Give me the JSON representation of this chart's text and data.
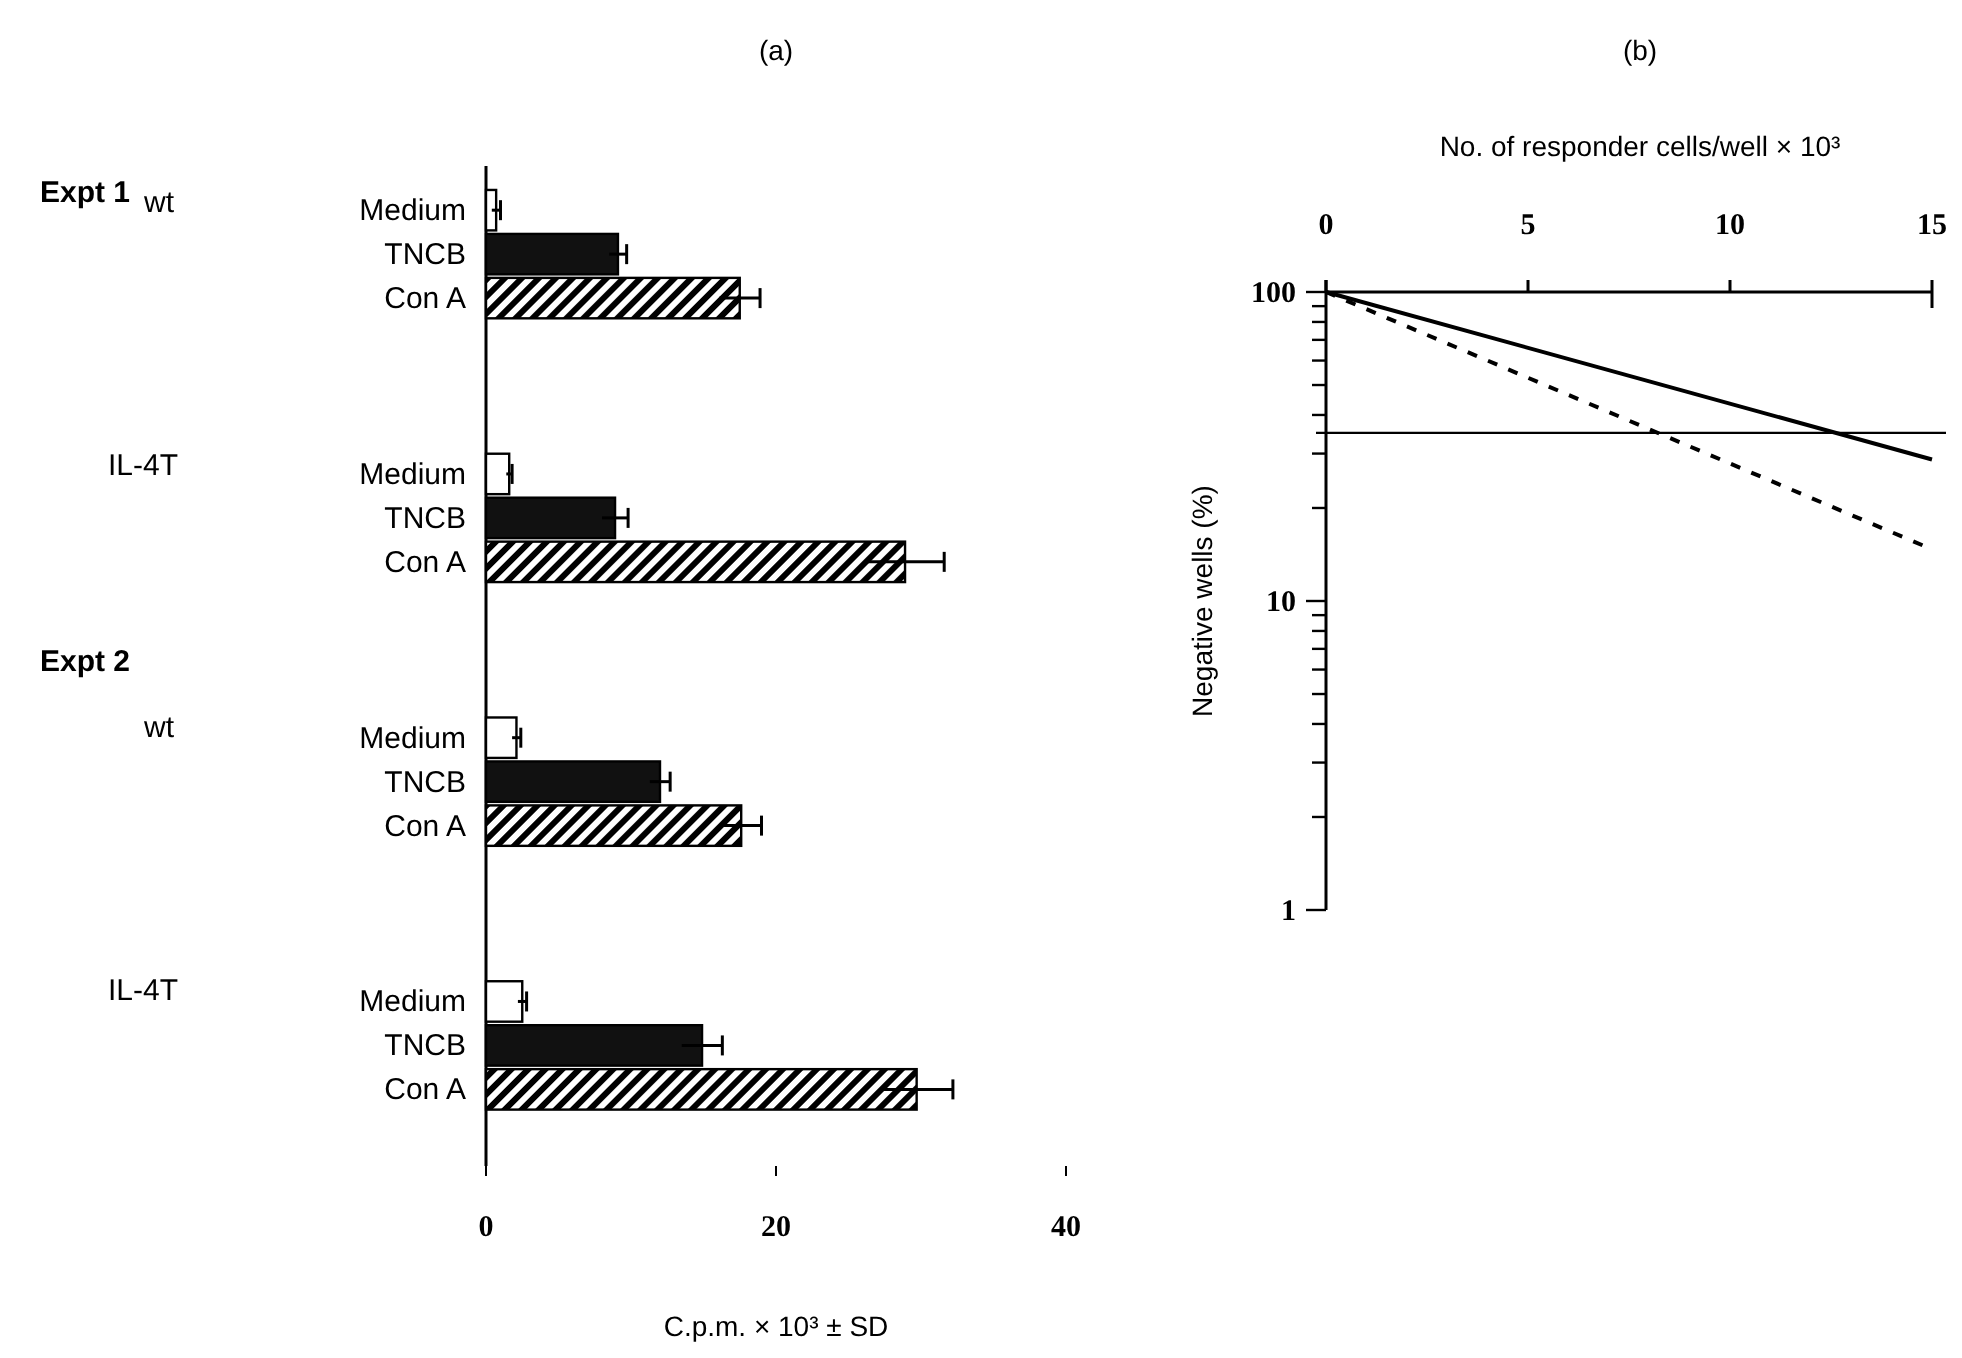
{
  "chart_data": [
    {
      "type": "bar",
      "orientation": "horizontal",
      "title": "(a)",
      "xlabel": "C.p.m. × 10³ ± SD",
      "categories": [
        null,
        "Medium",
        "TNCB",
        "Con A",
        null,
        null,
        null,
        "Medium",
        "TNCB",
        "Con A",
        null,
        null,
        null,
        "Medium",
        "TNCB",
        "Con A",
        null,
        null,
        null,
        "Medium",
        "TNCB",
        "Con A"
      ],
      "values": [
        null,
        0.7,
        9.1,
        17.5,
        null,
        null,
        null,
        1.6,
        8.9,
        28.9,
        null,
        null,
        null,
        2.1,
        12.0,
        17.6,
        null,
        null,
        null,
        2.5,
        14.9,
        29.7
      ],
      "errors": [
        null,
        0.3,
        0.6,
        1.4,
        null,
        null,
        null,
        0.2,
        0.9,
        2.7,
        null,
        null,
        null,
        0.3,
        0.7,
        1.4,
        null,
        null,
        null,
        0.3,
        1.4,
        2.5
      ],
      "colors": [
        null,
        "#ffffff",
        "#111111",
        "#000000",
        null,
        null,
        null,
        "#ffffff",
        "#111111",
        "#000000",
        null,
        null,
        null,
        "#ffffff",
        "#111111",
        "#000000",
        null,
        null,
        null,
        "#ffffff",
        "#111111",
        "#000000"
      ],
      "annotations": [
        "Expt 1",
        "wt",
        "IL-4T",
        "Expt 2",
        "wt",
        "IL-4T"
      ],
      "xlim": [
        0,
        40
      ],
      "xticks": [
        0,
        20,
        40
      ]
    },
    {
      "type": "line",
      "title": "(b)",
      "xlabel": "No. of responder cells/well × 10³",
      "ylabel": "Negative wells (%)",
      "log": "y",
      "x": [
        0,
        15
      ],
      "series": [
        {
          "color": "#000000",
          "values": [
            100,
            28.7
          ],
          "line_style": "solid"
        },
        {
          "color": "#000000",
          "values": [
            100,
            14.7
          ],
          "line_style": "dashed"
        }
      ],
      "ref_lines": [
        {
          "axis": "y",
          "value": 35,
          "color": "#000000"
        }
      ],
      "xlim": [
        0,
        15
      ],
      "xticks": [
        0,
        5,
        10,
        15
      ],
      "ylim": [
        1,
        100
      ],
      "yticks": [
        1,
        {
          "value": 2,
          "label": null
        },
        {
          "value": 3,
          "label": null
        },
        {
          "value": 4,
          "label": null
        },
        {
          "value": 5,
          "label": null
        },
        {
          "value": 6,
          "label": null
        },
        {
          "value": 7,
          "label": null
        },
        {
          "value": 8,
          "label": null
        },
        {
          "value": 9,
          "label": null
        },
        10,
        {
          "value": 20,
          "label": null
        },
        {
          "value": 30,
          "label": null
        },
        {
          "value": 40,
          "label": null
        },
        {
          "value": 50,
          "label": null
        },
        {
          "value": 60,
          "label": null
        },
        {
          "value": 70,
          "label": null
        },
        {
          "value": 80,
          "label": null
        },
        {
          "value": 90,
          "label": null
        },
        100
      ]
    }
  ]
}
